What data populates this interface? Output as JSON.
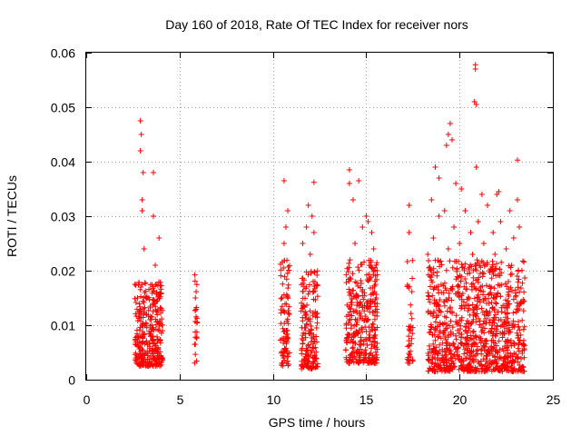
{
  "chart_data": {
    "type": "scatter",
    "title": "Day 160 of 2018, Rate Of TEC Index for receiver nors",
    "xlabel": "GPS time / hours",
    "ylabel": "ROTI / TECUs",
    "xlim": [
      0,
      25
    ],
    "ylim": [
      0,
      0.06
    ],
    "xticks": [
      0,
      5,
      10,
      15,
      20,
      25
    ],
    "xtick_labels": [
      "0",
      "5",
      "10",
      "15",
      "20",
      "25"
    ],
    "yticks": [
      0,
      0.01,
      0.02,
      0.03,
      0.04,
      0.05,
      0.06
    ],
    "ytick_labels": [
      "0",
      "0.01",
      "0.02",
      "0.03",
      "0.04",
      "0.05",
      "0.06"
    ],
    "grid": true,
    "marker": "+",
    "color": "#ff0000",
    "clusters": [
      {
        "x_range": [
          2.6,
          4.1
        ],
        "y_range": [
          0.0025,
          0.018
        ],
        "n": 320,
        "outliers": [
          [
            2.9,
            0.0475
          ],
          [
            2.95,
            0.045
          ],
          [
            2.9,
            0.042
          ],
          [
            3.05,
            0.038
          ],
          [
            3.6,
            0.038
          ],
          [
            3.0,
            0.033
          ],
          [
            3.0,
            0.031
          ],
          [
            3.6,
            0.03
          ],
          [
            3.9,
            0.026
          ],
          [
            3.1,
            0.024
          ],
          [
            3.7,
            0.021
          ]
        ]
      },
      {
        "x_range": [
          5.8,
          5.95
        ],
        "y_range": [
          0.003,
          0.0205
        ],
        "n": 25,
        "outliers": []
      },
      {
        "x_range": [
          10.4,
          10.9
        ],
        "y_range": [
          0.0025,
          0.022
        ],
        "n": 90,
        "outliers": [
          [
            10.6,
            0.0365
          ],
          [
            10.8,
            0.031
          ],
          [
            10.7,
            0.028
          ],
          [
            10.6,
            0.025
          ]
        ]
      },
      {
        "x_range": [
          11.5,
          12.4
        ],
        "y_range": [
          0.002,
          0.02
        ],
        "n": 170,
        "outliers": [
          [
            12.2,
            0.0362
          ],
          [
            11.9,
            0.032
          ],
          [
            12.1,
            0.03
          ],
          [
            11.8,
            0.028
          ],
          [
            12.2,
            0.027
          ],
          [
            11.6,
            0.025
          ],
          [
            12.0,
            0.023
          ]
        ]
      },
      {
        "x_range": [
          13.9,
          15.6
        ],
        "y_range": [
          0.003,
          0.022
        ],
        "n": 320,
        "outliers": [
          [
            14.1,
            0.0385
          ],
          [
            14.1,
            0.036
          ],
          [
            14.6,
            0.0365
          ],
          [
            14.3,
            0.033
          ],
          [
            15.0,
            0.03
          ],
          [
            14.8,
            0.028
          ],
          [
            15.3,
            0.027
          ],
          [
            14.4,
            0.025
          ],
          [
            15.4,
            0.024
          ],
          [
            15.1,
            0.029
          ]
        ]
      },
      {
        "x_range": [
          17.2,
          17.5
        ],
        "y_range": [
          0.003,
          0.022
        ],
        "n": 40,
        "outliers": [
          [
            17.3,
            0.032
          ],
          [
            17.3,
            0.027
          ]
        ]
      },
      {
        "x_range": [
          18.3,
          23.5
        ],
        "y_range": [
          0.0015,
          0.022
        ],
        "n": 950,
        "outliers": [
          [
            20.85,
            0.0578
          ],
          [
            20.85,
            0.057
          ],
          [
            20.8,
            0.051
          ],
          [
            20.9,
            0.0505
          ],
          [
            19.5,
            0.047
          ],
          [
            19.4,
            0.045
          ],
          [
            19.6,
            0.044
          ],
          [
            19.3,
            0.043
          ],
          [
            23.1,
            0.0403
          ],
          [
            18.7,
            0.039
          ],
          [
            20.9,
            0.039
          ],
          [
            18.9,
            0.037
          ],
          [
            19.8,
            0.036
          ],
          [
            20.1,
            0.035
          ],
          [
            21.2,
            0.034
          ],
          [
            22.0,
            0.034
          ],
          [
            22.1,
            0.0345
          ],
          [
            18.5,
            0.033
          ],
          [
            23.1,
            0.033
          ],
          [
            21.5,
            0.032
          ],
          [
            19.2,
            0.031
          ],
          [
            20.3,
            0.031
          ],
          [
            22.7,
            0.031
          ],
          [
            18.9,
            0.03
          ],
          [
            21.0,
            0.029
          ],
          [
            22.2,
            0.029
          ],
          [
            23.2,
            0.028
          ],
          [
            19.7,
            0.028
          ],
          [
            20.6,
            0.027
          ],
          [
            21.8,
            0.027
          ],
          [
            18.6,
            0.026
          ],
          [
            22.9,
            0.026
          ],
          [
            20.0,
            0.025
          ],
          [
            21.3,
            0.025
          ],
          [
            19.4,
            0.024
          ],
          [
            22.5,
            0.024
          ],
          [
            18.3,
            0.023
          ],
          [
            20.7,
            0.023
          ],
          [
            21.9,
            0.023
          ]
        ]
      }
    ]
  }
}
